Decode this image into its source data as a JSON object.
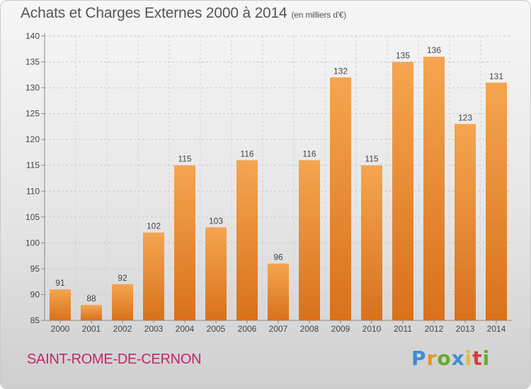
{
  "title": "Achats et Charges Externes 2000 à 2014",
  "subtitle": "(en milliers d'€)",
  "commune": "SAINT-ROME-DE-CERNON",
  "logo": {
    "p": "P",
    "r": "r",
    "o": "o",
    "x": "x",
    "i": "i",
    "t": "t",
    "i2": "i"
  },
  "colors": {
    "bar_top": "#f5a550",
    "bar_bottom": "#d9711b",
    "commune": "#c4266a"
  },
  "chart_data": {
    "type": "bar",
    "categories": [
      "2000",
      "2001",
      "2002",
      "2003",
      "2004",
      "2005",
      "2006",
      "2007",
      "2008",
      "2009",
      "2010",
      "2011",
      "2012",
      "2013",
      "2014"
    ],
    "values": [
      91,
      88,
      92,
      102,
      115,
      103,
      116,
      96,
      116,
      132,
      115,
      135,
      136,
      123,
      131
    ],
    "ylim": [
      85,
      140
    ],
    "yticks": [
      85,
      90,
      95,
      100,
      105,
      110,
      115,
      120,
      125,
      130,
      135,
      140
    ],
    "grid": true,
    "xlabel": "",
    "ylabel": ""
  }
}
